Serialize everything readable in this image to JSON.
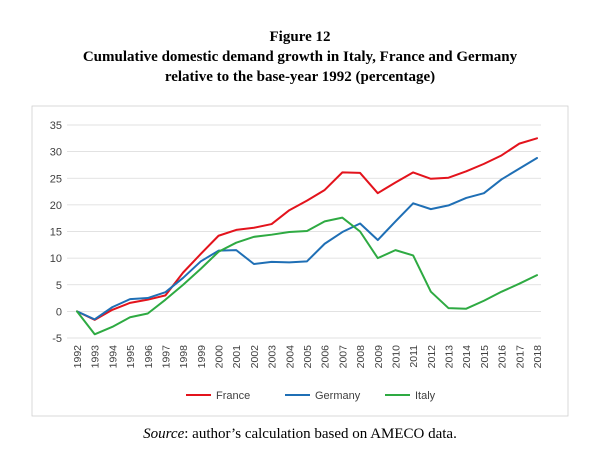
{
  "figure": {
    "number": "Figure 12",
    "title_line1": "Cumulative domestic demand growth in Italy, France and Germany",
    "title_line2": "relative to the base-year 1992 (percentage)"
  },
  "source": {
    "label": "Source",
    "text": ": author’s calculation based on AMECO data."
  },
  "colors": {
    "France": "#e3131c",
    "Germany": "#1f6fb5",
    "Italy": "#2eaa42",
    "grid": "#d9d9d9",
    "axis_text": "#404040",
    "frame": "#d0d0d0"
  },
  "chart_data": {
    "type": "line",
    "title": "Cumulative domestic demand growth in Italy, France and Germany relative to the base-year 1992 (percentage)",
    "xlabel": "",
    "ylabel": "",
    "ylim": [
      -5,
      35
    ],
    "yticks": [
      -5,
      0,
      5,
      10,
      15,
      20,
      25,
      30,
      35
    ],
    "grid": true,
    "legend": "bottom",
    "categories": [
      "1992",
      "1993",
      "1994",
      "1995",
      "1996",
      "1997",
      "1998",
      "1999",
      "2000",
      "2001",
      "2002",
      "2003",
      "2004",
      "2005",
      "2006",
      "2007",
      "2008",
      "2009",
      "2010",
      "2011",
      "2012",
      "2013",
      "2014",
      "2015",
      "2016",
      "2017",
      "2018"
    ],
    "series": [
      {
        "name": "France",
        "values": [
          0,
          -1.6,
          0.3,
          1.6,
          2.2,
          3.0,
          7.3,
          10.8,
          14.2,
          15.3,
          15.7,
          16.4,
          19.0,
          20.8,
          22.8,
          26.1,
          26.0,
          22.2,
          24.2,
          26.1,
          24.9,
          25.1,
          26.3,
          27.7,
          29.3,
          31.5,
          32.5
        ]
      },
      {
        "name": "Germany",
        "values": [
          0,
          -1.5,
          0.8,
          2.3,
          2.5,
          3.6,
          6.3,
          9.4,
          11.4,
          11.5,
          8.9,
          9.3,
          9.2,
          9.4,
          12.7,
          14.9,
          16.5,
          13.4,
          16.9,
          20.3,
          19.2,
          19.9,
          21.3,
          22.2,
          24.8,
          26.8,
          28.8
        ]
      },
      {
        "name": "Italy",
        "values": [
          0,
          -4.3,
          -2.9,
          -1.1,
          -0.4,
          2.2,
          5.0,
          8.0,
          11.2,
          12.9,
          14.0,
          14.4,
          14.9,
          15.1,
          16.9,
          17.6,
          15.0,
          10.0,
          11.5,
          10.5,
          3.7,
          0.6,
          0.5,
          2.0,
          3.7,
          5.2,
          6.8
        ]
      }
    ]
  }
}
